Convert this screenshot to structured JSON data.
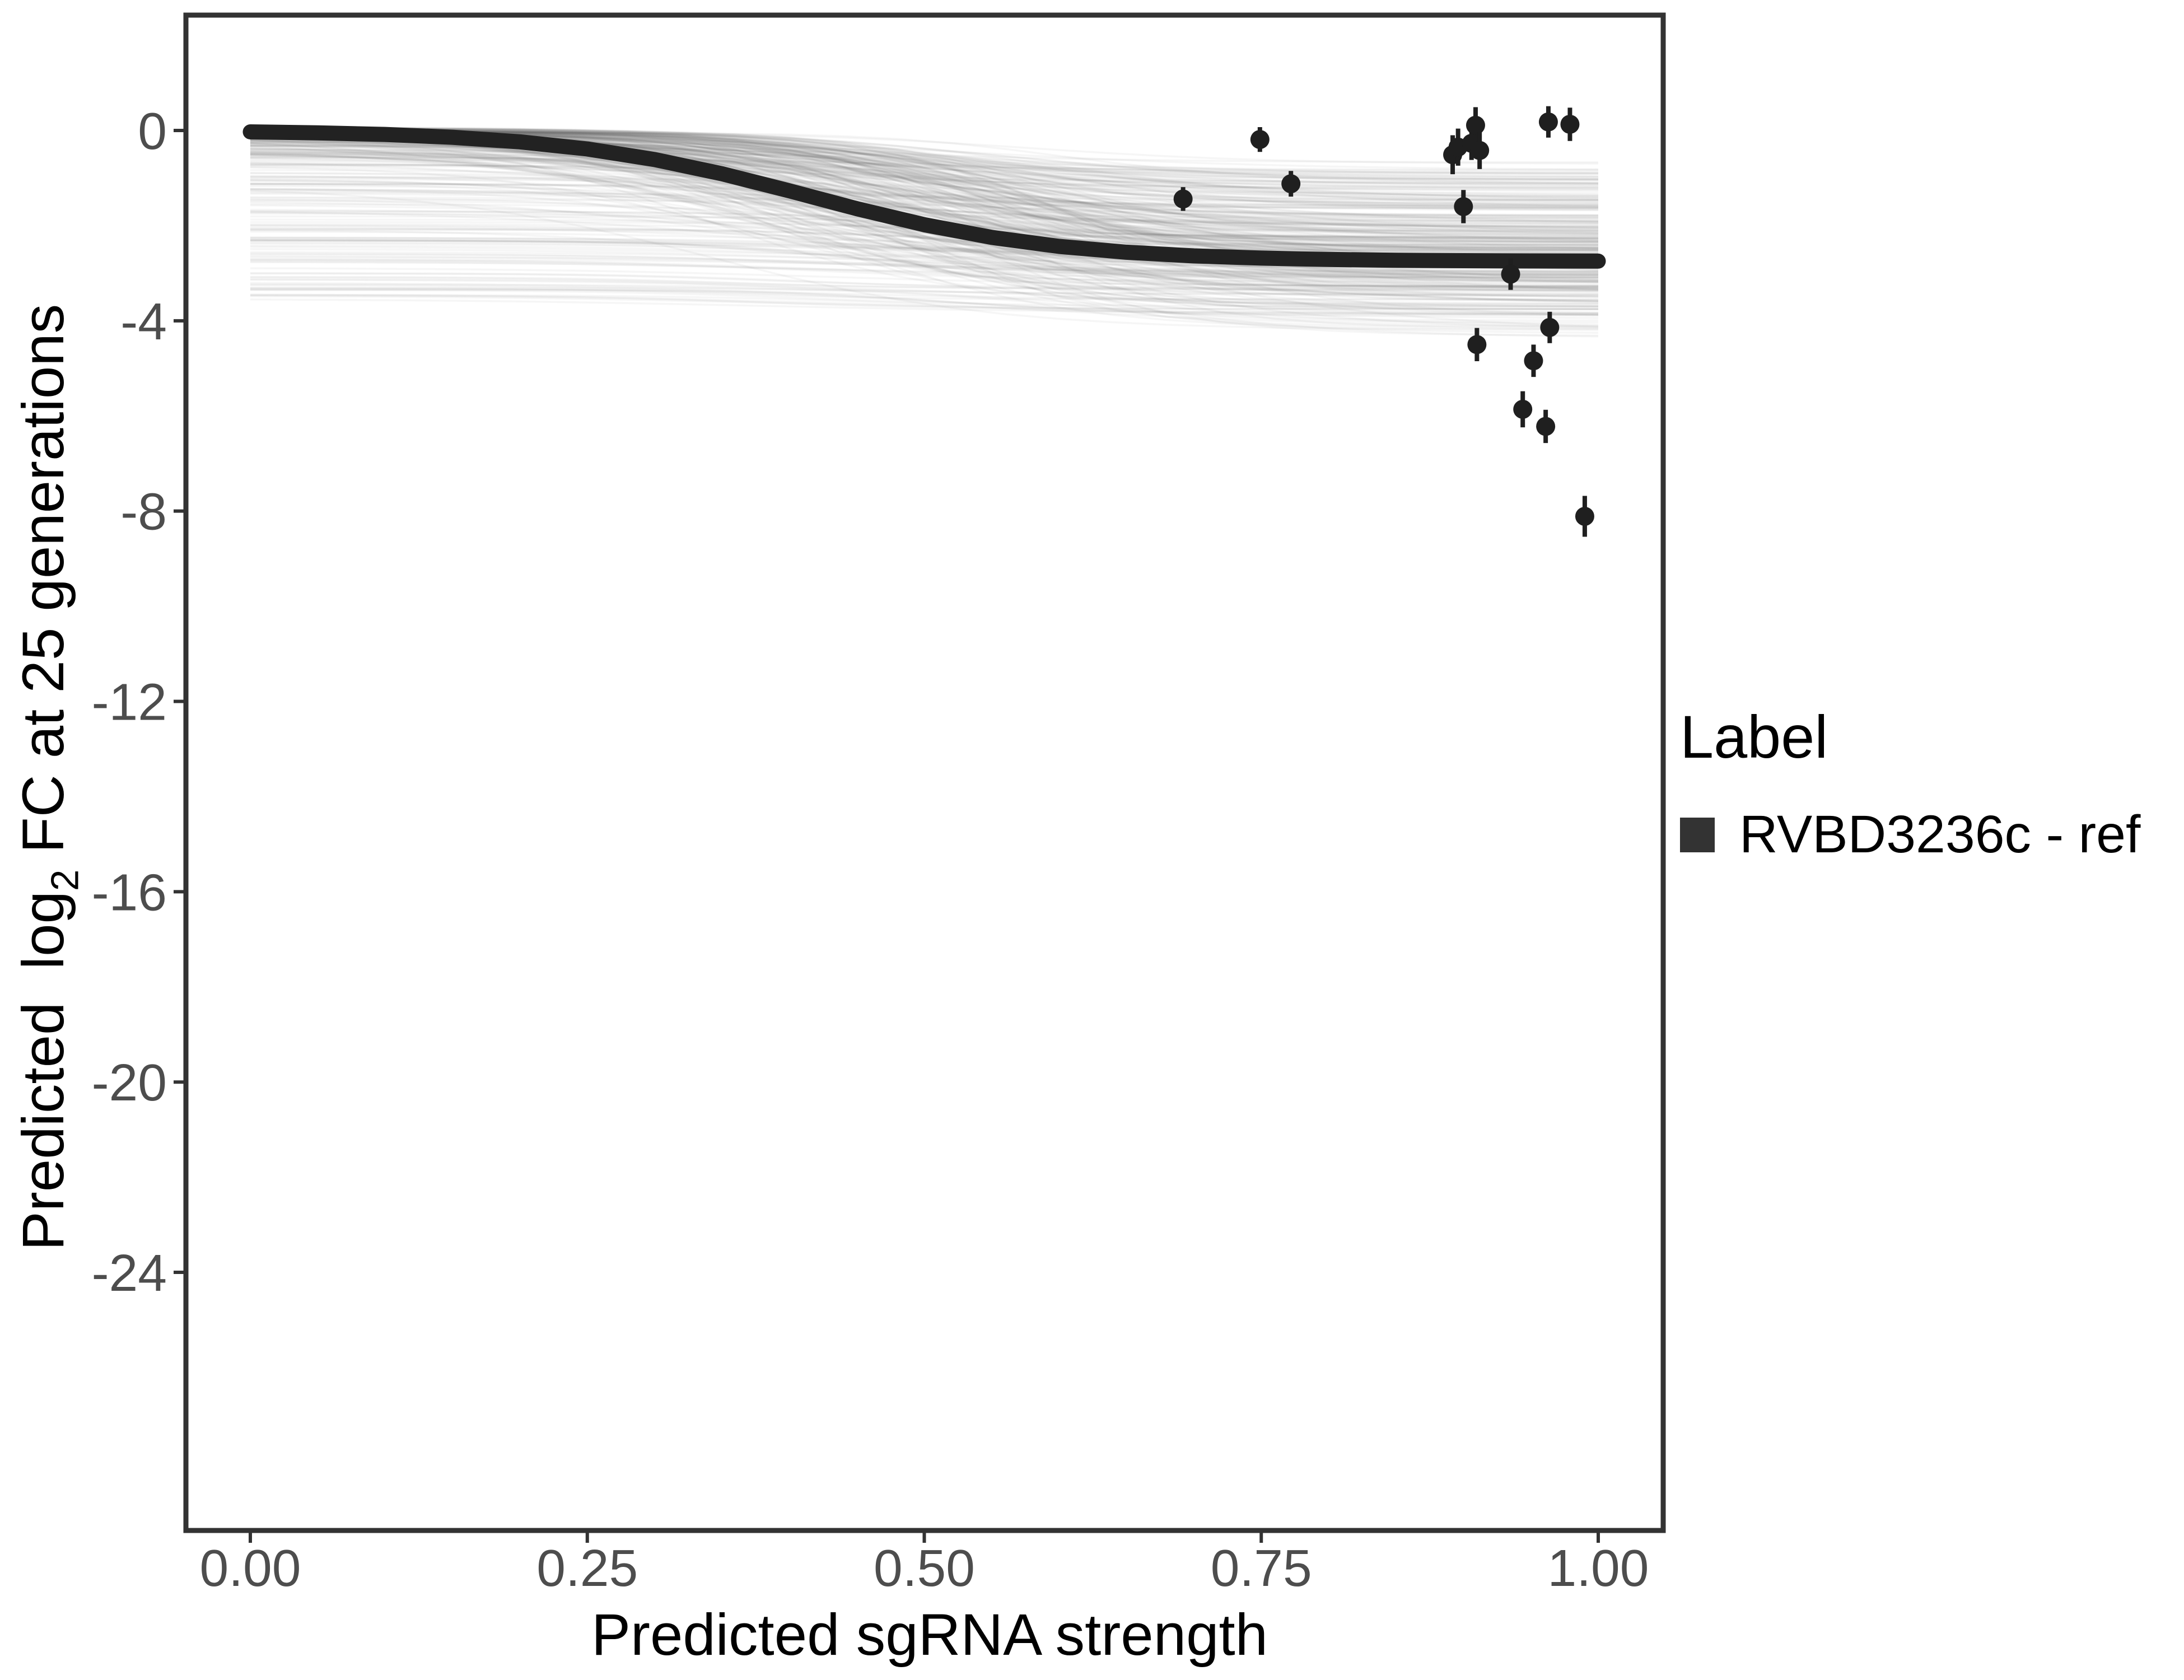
{
  "style": {
    "background": "#ffffff",
    "panel_border_color": "#333333",
    "tick_label_color": "#4d4d4d",
    "text_color": "#000000",
    "curve_color": "#222222",
    "point_color": "#1f1f1f",
    "spaghetti_color": "#646464"
  },
  "chart_data": {
    "type": "line",
    "title": "",
    "xlabel": "Predicted sgRNA strength",
    "ylabel": "Predicted log2 FC at 25 generations",
    "ylabel_parts": {
      "pre": "Predicted  log",
      "sub": "2",
      "post": " FC at 25 generations"
    },
    "xlim": [
      -0.048,
      1.048
    ],
    "ylim": [
      -29.4,
      2.4
    ],
    "grid": "off",
    "x_ticks": [
      0,
      0.25,
      0.5,
      0.75,
      1.0
    ],
    "x_tick_labels": [
      "0.00",
      "0.25",
      "0.50",
      "0.75",
      "1.00"
    ],
    "y_ticks": [
      0,
      -4,
      -8,
      -12,
      -16,
      -20,
      -24
    ],
    "y_tick_labels": [
      "0",
      "-4",
      "-8",
      "-12",
      "-16",
      "-20",
      "-24"
    ],
    "legend": {
      "position": "right",
      "title": "Label",
      "entries": [
        {
          "label": "RVBD3236c - ref",
          "color": "#333333"
        }
      ]
    },
    "series": [
      {
        "name": "RVBD3236c - ref",
        "type": "line",
        "color": "#222222",
        "width": 27,
        "x": [
          0.0,
          0.05,
          0.1,
          0.15,
          0.2,
          0.25,
          0.3,
          0.35,
          0.4,
          0.45,
          0.5,
          0.55,
          0.6,
          0.65,
          0.7,
          0.75,
          0.8,
          0.85,
          0.9,
          0.95,
          1.0
        ],
        "y": [
          -0.029,
          -0.049,
          -0.084,
          -0.143,
          -0.239,
          -0.389,
          -0.611,
          -0.91,
          -1.269,
          -1.644,
          -1.981,
          -2.247,
          -2.436,
          -2.559,
          -2.636,
          -2.683,
          -2.711,
          -2.728,
          -2.737,
          -2.742,
          -2.746
        ]
      },
      {
        "name": "posterior-draws",
        "type": "line-ensemble",
        "color": "#646464",
        "opacity": 0.055,
        "width": 3.5,
        "count": 350,
        "seed": 42,
        "x_range": [
          0,
          1
        ],
        "start_range": [
          0.08,
          -3.6
        ],
        "end_range": [
          -0.35,
          -4.45
        ],
        "midpoint_range": [
          0.33,
          0.61
        ],
        "steepness_range": [
          6.5,
          15.5
        ]
      }
    ],
    "points": {
      "name": "observed sgRNA estimates",
      "color": "#1f1f1f",
      "marker_radius": 17,
      "data": [
        {
          "x": 0.692,
          "y": -1.44,
          "err": 0.25
        },
        {
          "x": 0.749,
          "y": -0.19,
          "err": 0.26
        },
        {
          "x": 0.772,
          "y": -1.12,
          "err": 0.27
        },
        {
          "x": 0.892,
          "y": -0.51,
          "err": 0.41
        },
        {
          "x": 0.896,
          "y": -0.35,
          "err": 0.39
        },
        {
          "x": 0.9,
          "y": -1.6,
          "err": 0.35
        },
        {
          "x": 0.906,
          "y": -0.27,
          "err": 0.35
        },
        {
          "x": 0.909,
          "y": 0.11,
          "err": 0.38
        },
        {
          "x": 0.912,
          "y": -0.42,
          "err": 0.39
        },
        {
          "x": 0.91,
          "y": -4.5,
          "err": 0.35
        },
        {
          "x": 0.935,
          "y": -3.02,
          "err": 0.33
        },
        {
          "x": 0.944,
          "y": -5.86,
          "err": 0.38
        },
        {
          "x": 0.952,
          "y": -4.84,
          "err": 0.34
        },
        {
          "x": 0.961,
          "y": -6.22,
          "err": 0.35
        },
        {
          "x": 0.963,
          "y": 0.18,
          "err": 0.33
        },
        {
          "x": 0.964,
          "y": -4.14,
          "err": 0.33
        },
        {
          "x": 0.979,
          "y": 0.13,
          "err": 0.35
        },
        {
          "x": 0.99,
          "y": -8.11,
          "err": 0.43
        }
      ]
    }
  }
}
